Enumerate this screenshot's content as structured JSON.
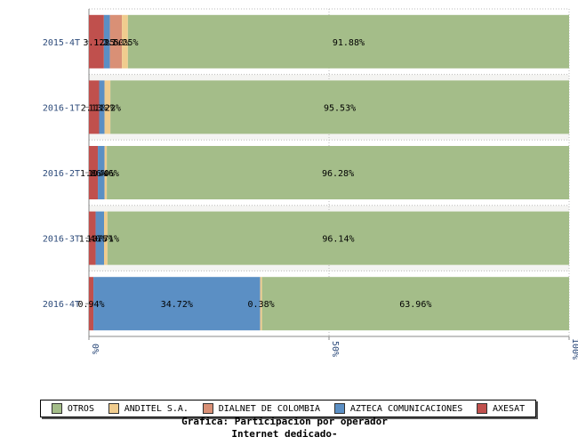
{
  "chart_data": {
    "type": "bar",
    "orientation": "horizontal",
    "stacked": "percent",
    "categories": [
      "2015-4T",
      "2016-1T",
      "2016-2T",
      "2016-3T",
      "2016-4T"
    ],
    "series": [
      {
        "name": "AXESAT",
        "color": "#c0504d",
        "values": [
          3.12,
          2.13,
          1.86,
          1.4,
          0.94
        ]
      },
      {
        "name": "AZTECA COMUNICACIONES",
        "color": "#5b8fc4",
        "values": [
          1.25,
          1.12,
          1.4,
          1.75,
          34.72
        ]
      },
      {
        "name": "DIALNET DE COLOMBIA",
        "color": "#d99076",
        "values": [
          2.5,
          0.0,
          0.0,
          0.0,
          0.0
        ]
      },
      {
        "name": "ANDITEL S.A.",
        "color": "#f0cc8e",
        "values": [
          1.25,
          1.22,
          0.46,
          0.71,
          0.38
        ]
      },
      {
        "name": "OTROS",
        "color": "#a4bd89",
        "values": [
          91.88,
          95.53,
          96.28,
          96.14,
          63.96
        ]
      }
    ],
    "data_labels": [
      [
        "3.12%",
        "1.25%",
        "2.50%",
        "1.25%",
        "91.88%"
      ],
      [
        "2.13%",
        "1.12%",
        "",
        "1.22%",
        "95.53%"
      ],
      [
        "1.86%",
        "1.40%",
        "",
        "0.46%",
        "96.28%"
      ],
      [
        "1.40%",
        "1.75%",
        "",
        "0.71%",
        "96.14%"
      ],
      [
        "0.94%",
        "34.72%",
        "",
        "0.38%",
        "63.96%"
      ]
    ],
    "x_ticks": [
      "0%",
      "50%",
      "100%"
    ],
    "xlim": [
      0,
      100
    ],
    "grid": true,
    "legend": {
      "position": "bottom",
      "order": [
        "OTROS",
        "ANDITEL S.A.",
        "DIALNET DE COLOMBIA",
        "AZTECA COMUNICACIONES",
        "AXESAT"
      ]
    }
  },
  "caption": {
    "line1": "Grafica: Participacion por operador",
    "line2": "Internet dedicado-"
  }
}
